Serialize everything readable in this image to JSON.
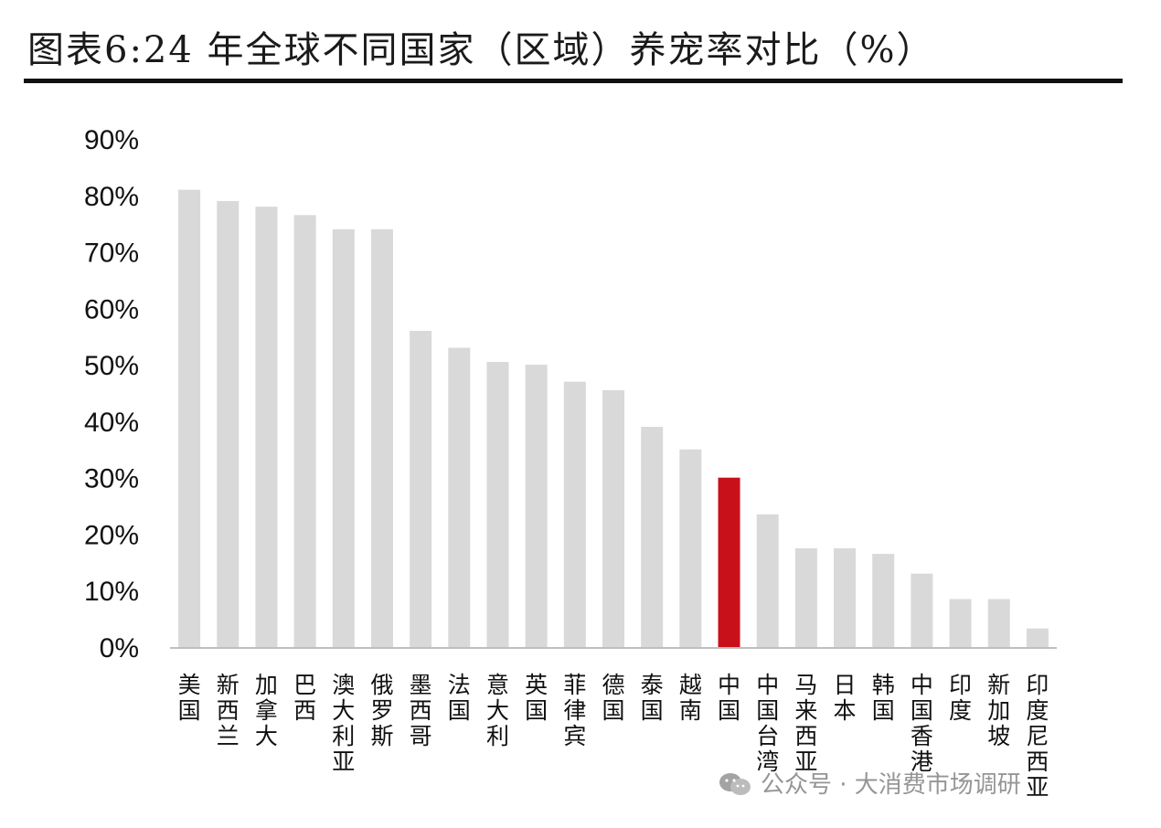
{
  "title": "图表6:24 年全球不同国家（区域）养宠率对比（%）",
  "watermark": "公众号 · 大消费市场调研",
  "colors": {
    "bar": "#d9d9d9",
    "highlight": "#c8101a",
    "axis": "#bfbfbf"
  },
  "chart_data": {
    "type": "bar",
    "title": "图表6:24 年全球不同国家（区域）养宠率对比（%）",
    "xlabel": "",
    "ylabel": "",
    "ylim": [
      0,
      90
    ],
    "yticks": [
      "0%",
      "10%",
      "20%",
      "30%",
      "40%",
      "50%",
      "60%",
      "70%",
      "80%",
      "90%"
    ],
    "grid": false,
    "highlight_category": "中国",
    "categories": [
      "美国",
      "新西兰",
      "加拿大",
      "巴西",
      "澳大利亚",
      "俄罗斯",
      "墨西哥",
      "法国",
      "意大利",
      "英国",
      "菲律宾",
      "德国",
      "泰国",
      "越南",
      "中国",
      "中国台湾",
      "马来西亚",
      "日本",
      "韩国",
      "中国香港",
      "印度",
      "新加坡",
      "印度尼西亚"
    ],
    "values": [
      81,
      79,
      78,
      76.5,
      74,
      74,
      56,
      53,
      50.5,
      50,
      47,
      45.5,
      39,
      35,
      30,
      23.5,
      17.5,
      17.5,
      16.5,
      13,
      8.5,
      8.5,
      3.3
    ]
  }
}
